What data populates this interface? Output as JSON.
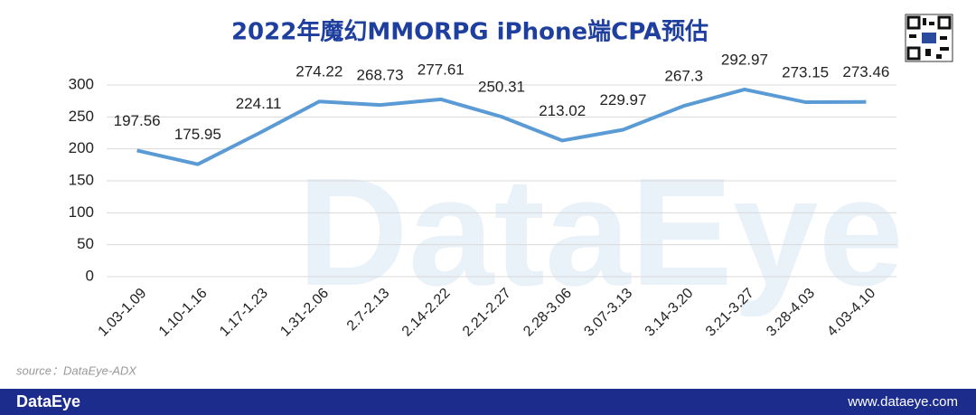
{
  "chart_data": {
    "type": "line",
    "title": "2022年魔幻MMORPG iPhone端CPA预估",
    "categories": [
      "1.03-1.09",
      "1.10-1.16",
      "1.17-1.23",
      "1.31-2.06",
      "2.7-2.13",
      "2.14-2.22",
      "2.21-2.27",
      "2.28-3.06",
      "3.07-3.13",
      "3.14-3.20",
      "3.21-3.27",
      "3.28-4.03",
      "4.03-4.10"
    ],
    "values": [
      197.56,
      175.95,
      224.11,
      274.22,
      268.73,
      277.61,
      250.31,
      213.02,
      229.97,
      267.3,
      292.97,
      273.15,
      273.46
    ],
    "color": "#5b9bd5",
    "ylim": [
      0,
      300
    ],
    "yticks": [
      0,
      50,
      100,
      150,
      200,
      250,
      300
    ],
    "grid": true
  },
  "watermark": "DataEye",
  "source": "source：DataEye-ADX",
  "footer": {
    "brand": "DataEye",
    "url": "www.dataeye.com"
  }
}
